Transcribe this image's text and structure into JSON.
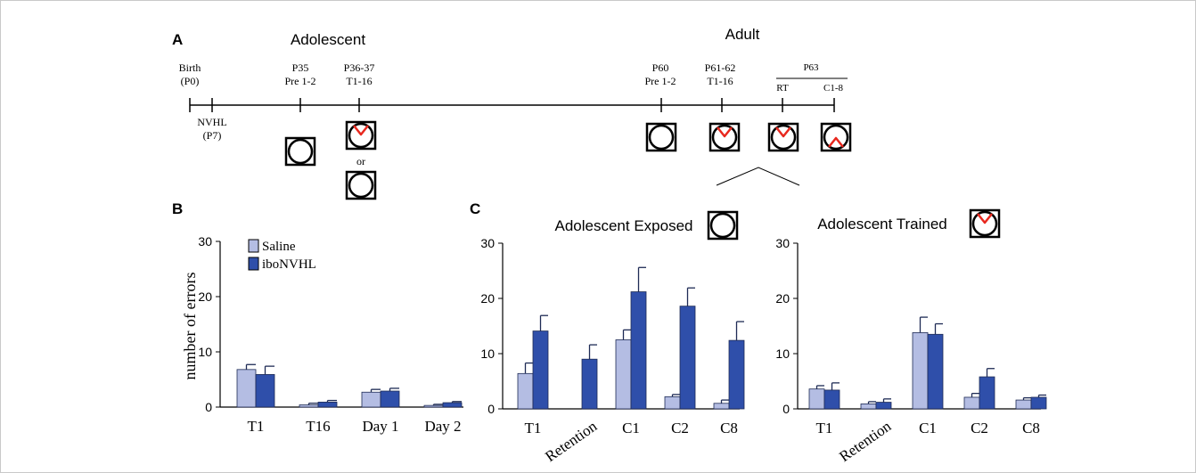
{
  "panels": {
    "a": "A",
    "b": "B",
    "c": "C"
  },
  "timeline": {
    "adolescent_label": "Adolescent",
    "adult_label": "Adult",
    "events": [
      {
        "l1": "Birth",
        "l2": "(P0)"
      },
      {
        "l1": "NVHL",
        "l2": "(P7)"
      },
      {
        "l1": "P35",
        "l2": "Pre 1-2"
      },
      {
        "l1": "P36-37",
        "l2": "T1-16"
      },
      {
        "l1": "P60",
        "l2": "Pre 1-2"
      },
      {
        "l1": "P61-62",
        "l2": "T1-16"
      }
    ],
    "p63_label": "P63",
    "rt_label": "RT",
    "c18_label": "C1-8",
    "or_label": "or"
  },
  "legend": {
    "saline": "Saline",
    "ibo": "iboNVHL"
  },
  "colors": {
    "saline": "#b4bde3",
    "ibo": "#2f4faa",
    "arena_marker": "#e8281e"
  },
  "chart_data": [
    {
      "type": "bar",
      "title": "",
      "ylabel": "number of errors",
      "ylim": [
        0,
        30
      ],
      "yticks": [
        "0",
        "10",
        "20",
        "30"
      ],
      "categories": [
        "T1",
        "T16",
        "Day 1",
        "Day 2"
      ],
      "series": [
        {
          "name": "Saline",
          "values": [
            6.8,
            0.4,
            2.7,
            0.3
          ],
          "errors": [
            0.9,
            0.3,
            0.5,
            0.2
          ]
        },
        {
          "name": "iboNVHL",
          "values": [
            5.9,
            0.9,
            2.9,
            0.8
          ],
          "errors": [
            1.5,
            0.3,
            0.5,
            0.2
          ]
        }
      ]
    },
    {
      "type": "bar",
      "title": "Adolescent Exposed",
      "ylim": [
        0,
        30
      ],
      "yticks": [
        "0",
        "10",
        "20",
        "30"
      ],
      "categories": [
        "T1",
        "Retention",
        "C1",
        "C2",
        "C8"
      ],
      "series": [
        {
          "name": "Saline",
          "values": [
            6.4,
            0,
            12.5,
            2.2,
            1.0
          ],
          "errors": [
            1.9,
            0,
            1.8,
            0.4,
            0.6
          ]
        },
        {
          "name": "iboNVHL",
          "values": [
            14.1,
            9.0,
            21.2,
            18.6,
            12.4
          ],
          "errors": [
            2.8,
            2.6,
            4.4,
            3.3,
            3.4
          ]
        }
      ]
    },
    {
      "type": "bar",
      "title": "Adolescent Trained",
      "ylim": [
        0,
        30
      ],
      "yticks": [
        "0",
        "10",
        "20",
        "30"
      ],
      "categories": [
        "T1",
        "Retention",
        "C1",
        "C2",
        "C8"
      ],
      "series": [
        {
          "name": "Saline",
          "values": [
            3.6,
            0.9,
            13.8,
            2.1,
            1.6
          ],
          "errors": [
            0.6,
            0.4,
            2.8,
            0.7,
            0.4
          ]
        },
        {
          "name": "iboNVHL",
          "values": [
            3.4,
            1.2,
            13.5,
            5.8,
            2.1
          ],
          "errors": [
            1.3,
            0.6,
            1.9,
            1.5,
            0.4
          ]
        }
      ]
    }
  ]
}
